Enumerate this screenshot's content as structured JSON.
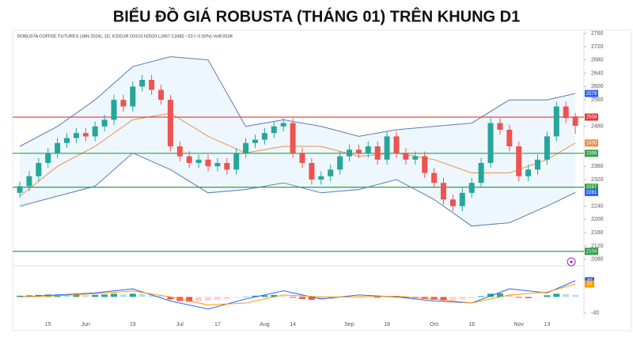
{
  "chart_data": {
    "type": "candlestick",
    "title": "BIỂU ĐỒ GIÁ ROBUSTA (THÁNG 01) TRÊN KHUNG D1",
    "subtitle": "ROBUSTA COFFEE FUTURES (JAN 2024), 1D, ICEEUR  O2510 H2520 L2457 C2482 −23 (−0.92%) Vol9.053K",
    "categories": [
      null,
      null,
      null,
      "15",
      null,
      null,
      null,
      "Jun",
      null,
      null,
      null,
      null,
      "19",
      null,
      null,
      null,
      null,
      "Jul",
      null,
      null,
      null,
      "17",
      null,
      null,
      null,
      null,
      "Aug",
      null,
      null,
      "14",
      null,
      null,
      null,
      null,
      null,
      "Sep",
      null,
      null,
      null,
      "18",
      null,
      null,
      null,
      null,
      "Oct",
      null,
      null,
      null,
      "16",
      null,
      null,
      null,
      null,
      "Nov",
      null,
      null,
      "13",
      null,
      null,
      null
    ],
    "open": [
      2280,
      2300,
      2330,
      2370,
      2400,
      2430,
      2445,
      2460,
      2450,
      2480,
      2500,
      2560,
      2540,
      2600,
      2620,
      2590,
      2560,
      2420,
      2390,
      2370,
      2380,
      2360,
      2370,
      2350,
      2400,
      2430,
      2440,
      2460,
      2480,
      2490,
      2400,
      2370,
      2320,
      2330,
      2350,
      2390,
      2410,
      2400,
      2420,
      2380,
      2450,
      2400,
      2380,
      2390,
      2340,
      2310,
      2260,
      2240,
      2280,
      2310,
      2370,
      2490,
      2470,
      2420,
      2330,
      2350,
      2380,
      2450,
      2540,
      2510
    ],
    "high": [
      2315,
      2345,
      2385,
      2415,
      2445,
      2460,
      2475,
      2475,
      2495,
      2515,
      2575,
      2575,
      2615,
      2635,
      2635,
      2605,
      2575,
      2435,
      2405,
      2395,
      2395,
      2385,
      2385,
      2415,
      2445,
      2455,
      2475,
      2495,
      2505,
      2505,
      2415,
      2385,
      2345,
      2365,
      2405,
      2425,
      2425,
      2435,
      2435,
      2465,
      2465,
      2415,
      2405,
      2405,
      2355,
      2325,
      2275,
      2295,
      2325,
      2385,
      2505,
      2505,
      2485,
      2435,
      2365,
      2395,
      2465,
      2555,
      2555,
      2520
    ],
    "low": [
      2265,
      2285,
      2315,
      2355,
      2385,
      2415,
      2430,
      2435,
      2435,
      2465,
      2485,
      2525,
      2525,
      2585,
      2575,
      2545,
      2405,
      2375,
      2355,
      2355,
      2345,
      2345,
      2335,
      2335,
      2385,
      2415,
      2425,
      2445,
      2465,
      2385,
      2355,
      2305,
      2305,
      2315,
      2335,
      2375,
      2385,
      2385,
      2365,
      2365,
      2385,
      2365,
      2365,
      2325,
      2295,
      2245,
      2225,
      2225,
      2265,
      2295,
      2355,
      2455,
      2405,
      2315,
      2315,
      2335,
      2365,
      2435,
      2490,
      2457
    ],
    "close": [
      2300,
      2330,
      2370,
      2400,
      2430,
      2445,
      2460,
      2450,
      2480,
      2500,
      2560,
      2540,
      2600,
      2620,
      2590,
      2560,
      2420,
      2390,
      2370,
      2380,
      2360,
      2370,
      2350,
      2400,
      2430,
      2440,
      2460,
      2480,
      2490,
      2400,
      2370,
      2320,
      2330,
      2350,
      2390,
      2410,
      2400,
      2420,
      2380,
      2450,
      2400,
      2380,
      2390,
      2340,
      2310,
      2260,
      2240,
      2280,
      2310,
      2370,
      2490,
      2470,
      2420,
      2330,
      2350,
      2380,
      2450,
      2540,
      2505,
      2482
    ],
    "up_color": "#26a69a",
    "down_color": "#ef5350",
    "ylim": [
      2070,
      2770
    ],
    "yticks": [
      2080,
      2120,
      2160,
      2200,
      2240,
      2320,
      2360,
      2480,
      2560,
      2600,
      2640,
      2680,
      2720,
      2760
    ],
    "bands": {
      "x": [
        0,
        4,
        8,
        12,
        16,
        20,
        24,
        28,
        32,
        36,
        40,
        44,
        48,
        52,
        56,
        59
      ],
      "upper": [
        2420,
        2480,
        2560,
        2660,
        2690,
        2680,
        2480,
        2500,
        2480,
        2450,
        2470,
        2480,
        2490,
        2560,
        2560,
        2579
      ],
      "lower": [
        2240,
        2270,
        2300,
        2400,
        2350,
        2280,
        2290,
        2310,
        2280,
        2290,
        2320,
        2260,
        2180,
        2190,
        2240,
        2281
      ],
      "basis": [
        2270,
        2360,
        2420,
        2500,
        2520,
        2450,
        2400,
        2420,
        2420,
        2390,
        2400,
        2380,
        2340,
        2340,
        2380,
        2430
      ],
      "band_color": "#5a7bb5",
      "basis_color": "#e8904a"
    },
    "levels": [
      {
        "value": 2508,
        "color": "#e53935"
      },
      {
        "value": 2399,
        "color": "#2e9e4a"
      },
      {
        "value": 2297,
        "color": "#2e9e4a"
      },
      {
        "value": 2104,
        "color": "#2e9e4a"
      }
    ],
    "macd": {
      "ylim": [
        -52,
        73
      ],
      "yticks": [
        -40
      ],
      "histogram": [
        3,
        4,
        5,
        6,
        6,
        5,
        5,
        4,
        5,
        6,
        8,
        6,
        8,
        7,
        4,
        2,
        -6,
        -10,
        -12,
        -11,
        -9,
        -7,
        -5,
        -2,
        1,
        3,
        4,
        5,
        2,
        -2,
        -5,
        -7,
        -6,
        -4,
        -2,
        -1,
        -1,
        0,
        -2,
        1,
        -1,
        -3,
        -3,
        -5,
        -7,
        -9,
        -8,
        -6,
        -3,
        2,
        8,
        9,
        5,
        -2,
        -3,
        0,
        4,
        8,
        7,
        5
      ],
      "x": [
        0,
        4,
        8,
        12,
        16,
        20,
        24,
        28,
        32,
        36,
        40,
        44,
        48,
        52,
        56,
        59
      ],
      "macd_line": [
        0,
        5,
        10,
        20,
        -10,
        -30,
        -5,
        15,
        -5,
        5,
        0,
        -10,
        -15,
        20,
        10,
        40
      ],
      "signal_line": [
        0,
        3,
        8,
        15,
        0,
        -20,
        -15,
        5,
        0,
        0,
        2,
        -5,
        -15,
        5,
        12,
        32
      ],
      "macd_color": "#2962ff",
      "signal_color": "#ff9800"
    }
  }
}
